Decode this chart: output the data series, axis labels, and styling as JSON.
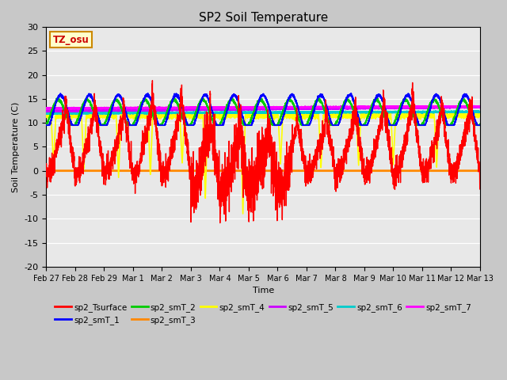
{
  "title": "SP2 Soil Temperature",
  "ylabel": "Soil Temperature (C)",
  "xlabel": "Time",
  "tz_label": "TZ_osu",
  "ylim": [
    -20,
    30
  ],
  "fig_bg": "#c8c8c8",
  "ax_bg": "#e8e8e8",
  "series_colors": {
    "sp2_Tsurface": "#ff0000",
    "sp2_smT_1": "#0000ff",
    "sp2_smT_2": "#00cc00",
    "sp2_smT_3": "#ff8800",
    "sp2_smT_4": "#ffff00",
    "sp2_smT_5": "#cc00ff",
    "sp2_smT_6": "#00cccc",
    "sp2_smT_7": "#ff00ff"
  },
  "x_tick_labels": [
    "Feb 27",
    "Feb 28",
    "Feb 29",
    "Mar 1",
    "Mar 2",
    "Mar 3",
    "Mar 4",
    "Mar 5",
    "Mar 6",
    "Mar 7",
    "Mar 8",
    "Mar 9",
    "Mar 10",
    "Mar 11",
    "Mar 12",
    "Mar 13"
  ],
  "n_days": 15,
  "pts_per_day": 288,
  "smT_3_val": 0.0,
  "smT_5_val": 12.5,
  "smT_6_val": 12.0,
  "smT_7_val": 13.0
}
